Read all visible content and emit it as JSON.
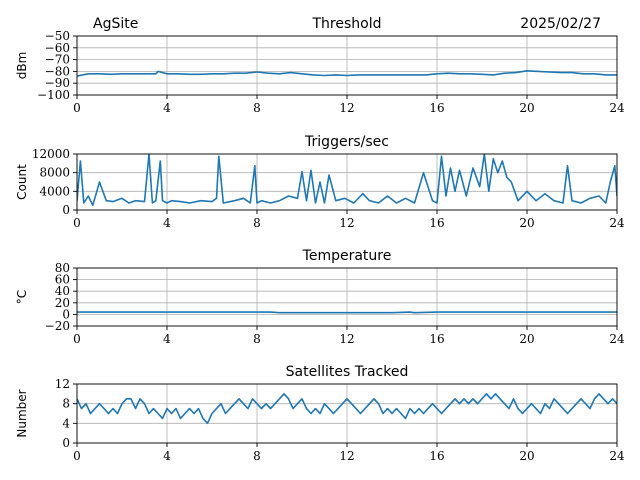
{
  "header": {
    "site": "AgSite",
    "date": "2025/02/27"
  },
  "colors": {
    "series": "#1f77b4",
    "grid": "#b0b0b0",
    "axis": "#000000"
  },
  "chart_data": [
    {
      "type": "line",
      "title": "Threshold",
      "ylabel": "dBm",
      "xlim": [
        0,
        24
      ],
      "ylim": [
        -100,
        -50
      ],
      "xticks": [
        0,
        4,
        8,
        12,
        16,
        20,
        24
      ],
      "yticks": [
        -100,
        -90,
        -80,
        -70,
        -60,
        -50
      ],
      "ytick_labels": [
        "−100",
        "−90",
        "−80",
        "−70",
        "−60",
        "−50"
      ],
      "grid": true,
      "series": [
        {
          "x": [
            0,
            0.5,
            1,
            1.5,
            2,
            2.5,
            3,
            3.5,
            3.6,
            4,
            4.5,
            5,
            5.5,
            6,
            6.5,
            7,
            7.5,
            8,
            8.5,
            9,
            9.5,
            10,
            10.5,
            11,
            11.5,
            12,
            12.5,
            13,
            13.5,
            14,
            14.5,
            15,
            15.5,
            16,
            16.5,
            17,
            17.5,
            18,
            18.5,
            19,
            19.5,
            20,
            20.5,
            21,
            21.5,
            22,
            22.5,
            23,
            23.5,
            24
          ],
          "y": [
            -84,
            -82,
            -82,
            -82.5,
            -82,
            -82,
            -82,
            -82,
            -80,
            -82,
            -82,
            -82.5,
            -82.5,
            -82,
            -82,
            -81.5,
            -81.5,
            -80.5,
            -81.5,
            -82,
            -81,
            -82,
            -83,
            -83.5,
            -83,
            -83.5,
            -83,
            -83,
            -83,
            -83,
            -83,
            -83,
            -83,
            -82,
            -81.5,
            -82,
            -82,
            -82.5,
            -83,
            -81.5,
            -81,
            -79.5,
            -80,
            -80.5,
            -81,
            -81,
            -82,
            -82,
            -83,
            -83
          ]
        }
      ]
    },
    {
      "type": "line",
      "title": "Triggers/sec",
      "ylabel": "Count",
      "xlim": [
        0,
        24
      ],
      "ylim": [
        0,
        12000
      ],
      "xticks": [
        0,
        4,
        8,
        12,
        16,
        20,
        24
      ],
      "yticks": [
        0,
        4000,
        8000,
        12000
      ],
      "ytick_labels": [
        "0",
        "4000",
        "8000",
        "12000"
      ],
      "grid": true,
      "series": [
        {
          "x": [
            0,
            0.15,
            0.3,
            0.5,
            0.7,
            1.0,
            1.3,
            1.6,
            2.0,
            2.3,
            2.6,
            3.0,
            3.2,
            3.35,
            3.5,
            3.7,
            3.8,
            4.0,
            4.2,
            4.6,
            5.0,
            5.5,
            6.0,
            6.2,
            6.3,
            6.5,
            7.0,
            7.4,
            7.7,
            7.9,
            8.0,
            8.2,
            8.6,
            9.0,
            9.4,
            9.8,
            10.0,
            10.2,
            10.4,
            10.6,
            10.8,
            11.0,
            11.2,
            11.5,
            11.9,
            12.3,
            12.7,
            13.0,
            13.4,
            13.8,
            14.2,
            14.6,
            15.0,
            15.4,
            15.8,
            16.0,
            16.2,
            16.4,
            16.6,
            16.8,
            17.0,
            17.3,
            17.6,
            17.9,
            18.1,
            18.3,
            18.5,
            18.7,
            18.9,
            19.1,
            19.3,
            19.6,
            20.0,
            20.4,
            20.8,
            21.2,
            21.6,
            21.8,
            22.0,
            22.4,
            22.8,
            23.2,
            23.5,
            23.7,
            23.9,
            24.0
          ],
          "y": [
            2000,
            10500,
            1500,
            3000,
            1000,
            6000,
            2000,
            1800,
            2500,
            1500,
            2000,
            1800,
            12000,
            1500,
            2000,
            10500,
            2000,
            1500,
            2000,
            1800,
            1500,
            2000,
            1800,
            2500,
            11500,
            1500,
            2000,
            2500,
            1500,
            9500,
            1500,
            2000,
            1500,
            2000,
            3000,
            2500,
            8200,
            2000,
            8500,
            1500,
            6000,
            1500,
            7500,
            2000,
            2500,
            1500,
            3500,
            2000,
            1500,
            3000,
            1500,
            2500,
            1500,
            8000,
            2000,
            1500,
            11500,
            3000,
            9000,
            4000,
            8500,
            3000,
            9000,
            5000,
            12000,
            4000,
            11000,
            8000,
            10500,
            7000,
            6000,
            2000,
            4000,
            2000,
            3500,
            2000,
            1500,
            9500,
            2000,
            1500,
            2500,
            3000,
            1500,
            6000,
            9500,
            3000
          ]
        }
      ]
    },
    {
      "type": "line",
      "title": "Temperature",
      "ylabel": "°C",
      "xlim": [
        0,
        24
      ],
      "ylim": [
        -20,
        80
      ],
      "xticks": [
        0,
        4,
        8,
        12,
        16,
        20,
        24
      ],
      "yticks": [
        -20,
        0,
        20,
        40,
        60,
        80
      ],
      "ytick_labels": [
        "−20",
        "0",
        "20",
        "40",
        "60",
        "80"
      ],
      "grid": true,
      "series": [
        {
          "x": [
            0,
            2,
            4,
            6,
            8,
            8.6,
            9,
            10,
            12,
            14,
            14.8,
            15,
            16,
            18,
            20,
            22,
            24
          ],
          "y": [
            4,
            4,
            4,
            4,
            4,
            4,
            3,
            3,
            3,
            3,
            4,
            3,
            4,
            4,
            4,
            4,
            4
          ]
        }
      ]
    },
    {
      "type": "line",
      "title": "Satellites Tracked",
      "ylabel": "Number",
      "xlim": [
        0,
        24
      ],
      "ylim": [
        0,
        12
      ],
      "xticks": [
        0,
        4,
        8,
        12,
        16,
        20,
        24
      ],
      "yticks": [
        0,
        4,
        8,
        12
      ],
      "ytick_labels": [
        "0",
        "4",
        "8",
        "12"
      ],
      "grid": true,
      "series": [
        {
          "x": [
            0,
            0.2,
            0.4,
            0.6,
            0.8,
            1.0,
            1.2,
            1.4,
            1.6,
            1.8,
            2.0,
            2.2,
            2.4,
            2.6,
            2.8,
            3.0,
            3.2,
            3.4,
            3.6,
            3.8,
            4.0,
            4.2,
            4.4,
            4.6,
            4.8,
            5.0,
            5.2,
            5.4,
            5.6,
            5.8,
            6.0,
            6.2,
            6.4,
            6.6,
            6.8,
            7.0,
            7.2,
            7.4,
            7.6,
            7.8,
            8.0,
            8.2,
            8.4,
            8.6,
            8.8,
            9.0,
            9.2,
            9.4,
            9.6,
            9.8,
            10.0,
            10.2,
            10.4,
            10.6,
            10.8,
            11.0,
            11.2,
            11.4,
            11.6,
            11.8,
            12.0,
            12.2,
            12.4,
            12.6,
            12.8,
            13.0,
            13.2,
            13.4,
            13.6,
            13.8,
            14.0,
            14.2,
            14.4,
            14.6,
            14.8,
            15.0,
            15.2,
            15.4,
            15.6,
            15.8,
            16.0,
            16.2,
            16.4,
            16.6,
            16.8,
            17.0,
            17.2,
            17.4,
            17.6,
            17.8,
            18.0,
            18.2,
            18.4,
            18.6,
            18.8,
            19.0,
            19.2,
            19.4,
            19.6,
            19.8,
            20.0,
            20.2,
            20.4,
            20.6,
            20.8,
            21.0,
            21.2,
            21.4,
            21.6,
            21.8,
            22.0,
            22.2,
            22.4,
            22.6,
            22.8,
            23.0,
            23.2,
            23.4,
            23.6,
            23.8,
            24.0
          ],
          "y": [
            9,
            7,
            8,
            6,
            7,
            8,
            7,
            6,
            7,
            6,
            8,
            9,
            9,
            7,
            9,
            8,
            6,
            7,
            6,
            5,
            7,
            6,
            7,
            5,
            6,
            7,
            6,
            7,
            5,
            4,
            6,
            7,
            8,
            6,
            7,
            8,
            9,
            8,
            7,
            9,
            8,
            7,
            8,
            7,
            8,
            9,
            10,
            9,
            7,
            8,
            9,
            7,
            6,
            7,
            6,
            8,
            7,
            6,
            7,
            8,
            9,
            8,
            7,
            6,
            7,
            8,
            9,
            8,
            6,
            7,
            6,
            7,
            6,
            5,
            7,
            6,
            7,
            6,
            7,
            8,
            7,
            6,
            7,
            8,
            9,
            8,
            9,
            8,
            9,
            8,
            9,
            10,
            9,
            10,
            9,
            8,
            7,
            9,
            7,
            6,
            7,
            8,
            7,
            6,
            8,
            7,
            9,
            8,
            7,
            6,
            7,
            8,
            9,
            8,
            7,
            9,
            10,
            9,
            8,
            9,
            8
          ]
        }
      ]
    }
  ]
}
